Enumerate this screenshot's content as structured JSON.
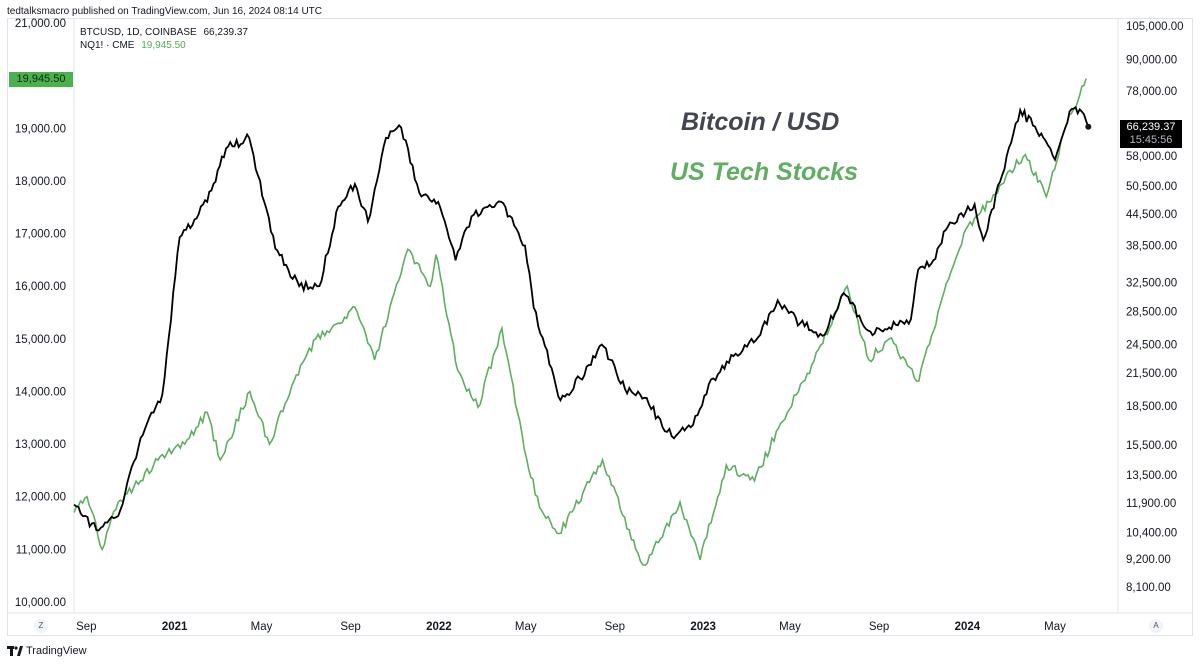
{
  "header": {
    "published": "tedtalksmacro published on TradingView.com, Jun 16, 2024 08:14 UTC"
  },
  "legend": {
    "btc_symbol": "BTCUSD, 1D, COINBASE",
    "btc_value": "66,239.37",
    "nq_symbol": "NQ1! · CME",
    "nq_value": "19,945.50"
  },
  "annotations": {
    "btc_title": "Bitcoin / USD",
    "nq_title": "US Tech Stocks"
  },
  "badges": {
    "left_price": "19,945.50",
    "right_price": "66,239.37",
    "right_countdown": "15:45:56"
  },
  "buttons": {
    "left_scale": "Z",
    "right_scale": "A"
  },
  "footer": {
    "brand": "TradingView"
  },
  "colors": {
    "btc": "#000000",
    "nq": "#5fae62",
    "badge_green": "#4caf50",
    "grid": "#e0e3eb",
    "btc_title": "#434651"
  },
  "chart_data": {
    "type": "line",
    "x_labels": [
      "Sep",
      "2021",
      "May",
      "Sep",
      "2022",
      "May",
      "Sep",
      "2023",
      "May",
      "Sep",
      "2024",
      "May"
    ],
    "left_axis": {
      "ticks": [
        "21,000.00",
        "19,000.00",
        "18,000.00",
        "17,000.00",
        "16,000.00",
        "15,000.00",
        "14,000.00",
        "13,000.00",
        "12,000.00",
        "11,000.00",
        "10,000.00"
      ],
      "range": [
        10000,
        21000
      ]
    },
    "right_axis": {
      "ticks": [
        "105,000.00",
        "90,000.00",
        "78,000.00",
        "58,000.00",
        "50,500.00",
        "44,500.00",
        "38,500.00",
        "32,500.00",
        "28,500.00",
        "24,500.00",
        "21,500.00",
        "18,500.00",
        "15,500.00",
        "13,500.00",
        "11,900.00",
        "10,400.00",
        "9,200.00",
        "8,100.00"
      ],
      "scale": "log"
    },
    "series": [
      {
        "name": "BTCUSD, 1D, COINBASE",
        "axis": "right",
        "x": [
          "2020-08-15",
          "2020-09-15",
          "2020-10-15",
          "2020-11-15",
          "2020-12-15",
          "2021-01-08",
          "2021-02-15",
          "2021-03-13",
          "2021-04-14",
          "2021-05-20",
          "2021-06-22",
          "2021-07-20",
          "2021-08-15",
          "2021-09-07",
          "2021-09-25",
          "2021-10-20",
          "2021-11-10",
          "2021-12-05",
          "2021-12-31",
          "2022-01-24",
          "2022-02-15",
          "2022-03-28",
          "2022-04-30",
          "2022-05-12",
          "2022-06-18",
          "2022-07-15",
          "2022-08-14",
          "2022-09-15",
          "2022-10-15",
          "2022-11-09",
          "2022-11-25",
          "2022-12-15",
          "2023-01-15",
          "2023-02-15",
          "2023-03-15",
          "2023-04-14",
          "2023-05-15",
          "2023-06-15",
          "2023-07-14",
          "2023-08-20",
          "2023-09-15",
          "2023-10-15",
          "2023-10-25",
          "2023-11-15",
          "2023-12-05",
          "2024-01-11",
          "2024-01-23",
          "2024-02-15",
          "2024-03-14",
          "2024-04-15",
          "2024-05-01",
          "2024-05-21",
          "2024-06-07",
          "2024-06-16"
        ],
        "values": [
          11800,
          10500,
          11200,
          16000,
          19500,
          40000,
          47000,
          60000,
          63000,
          38000,
          32000,
          32000,
          46000,
          51000,
          43000,
          63000,
          66000,
          49000,
          47000,
          36000,
          44000,
          47000,
          38500,
          29000,
          19000,
          21000,
          24500,
          20000,
          19200,
          16500,
          16200,
          16800,
          21000,
          23500,
          25000,
          30000,
          27000,
          25500,
          31000,
          26000,
          26500,
          27500,
          34500,
          36000,
          42000,
          46500,
          39500,
          51500,
          71500,
          63000,
          57000,
          71000,
          71000,
          66239
        ]
      },
      {
        "name": "NQ1! · CME",
        "axis": "left",
        "x": [
          "2020-08-15",
          "2020-09-02",
          "2020-09-23",
          "2020-10-15",
          "2020-11-15",
          "2020-12-15",
          "2021-01-15",
          "2021-02-15",
          "2021-03-05",
          "2021-04-15",
          "2021-05-12",
          "2021-06-15",
          "2021-07-15",
          "2021-08-15",
          "2021-09-07",
          "2021-10-04",
          "2021-11-19",
          "2021-12-20",
          "2021-12-28",
          "2022-01-27",
          "2022-02-24",
          "2022-03-29",
          "2022-04-29",
          "2022-05-20",
          "2022-06-16",
          "2022-08-15",
          "2022-09-30",
          "2022-10-13",
          "2022-11-30",
          "2022-12-28",
          "2023-02-02",
          "2023-03-13",
          "2023-04-15",
          "2023-05-31",
          "2023-07-19",
          "2023-08-18",
          "2023-09-15",
          "2023-10-26",
          "2023-11-30",
          "2023-12-27",
          "2024-01-31",
          "2024-02-29",
          "2024-03-21",
          "2024-04-19",
          "2024-05-15",
          "2024-06-13"
        ],
        "values": [
          11700,
          12000,
          11000,
          11900,
          12300,
          12800,
          13000,
          13600,
          12700,
          14000,
          13000,
          14200,
          15000,
          15300,
          15600,
          14600,
          16700,
          16000,
          16600,
          14400,
          13700,
          15200,
          12900,
          11800,
          11300,
          12700,
          11000,
          10700,
          11900,
          10800,
          12600,
          12300,
          13300,
          14500,
          16000,
          14600,
          15000,
          14200,
          15900,
          17000,
          17600,
          18200,
          18500,
          17700,
          19000,
          19945.5
        ]
      }
    ]
  }
}
